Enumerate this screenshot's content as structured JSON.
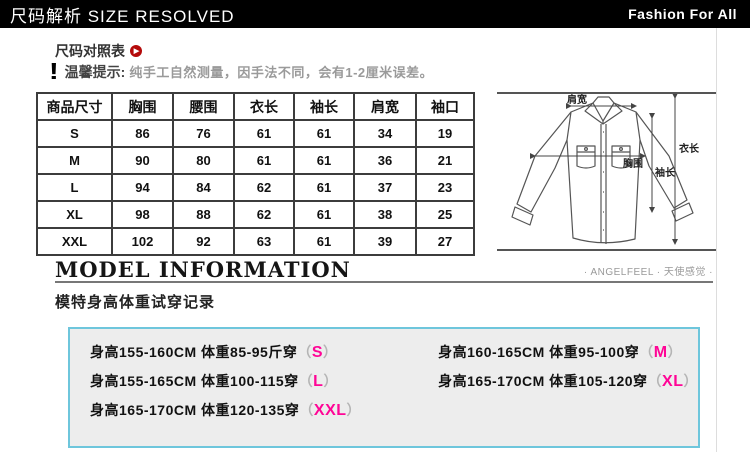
{
  "header": {
    "title": "尺码解析 SIZE RESOLVED",
    "brand": "Fashion For All"
  },
  "section": {
    "chart_title": "尺码对照表",
    "tip_icon": "!",
    "tip_label": "温馨提示:",
    "tip_text": "纯手工自然测量，因手法不同，会有1-2厘米误差。"
  },
  "icons": {
    "play": "▶"
  },
  "size_table": {
    "columns": [
      "商品尺寸",
      "胸围",
      "腰围",
      "衣长",
      "袖长",
      "肩宽",
      "袖口"
    ],
    "rows": [
      [
        "S",
        "86",
        "76",
        "61",
        "61",
        "34",
        "19"
      ],
      [
        "M",
        "90",
        "80",
        "61",
        "61",
        "36",
        "21"
      ],
      [
        "L",
        "94",
        "84",
        "62",
        "61",
        "37",
        "23"
      ],
      [
        "XL",
        "98",
        "88",
        "62",
        "61",
        "38",
        "25"
      ],
      [
        "XXL",
        "102",
        "92",
        "63",
        "61",
        "39",
        "27"
      ]
    ]
  },
  "diagram": {
    "labels": {
      "shoulder": "肩宽",
      "chest": "胸围",
      "length": "衣长",
      "sleeve": "袖长"
    }
  },
  "model_info": {
    "title": "MODEL INFORMATION",
    "brand_note": "· ANGELFEEL · 天使感觉 ·",
    "subtitle": "模特身高体重试穿记录"
  },
  "fitting": {
    "paren_open": "（",
    "paren_close": "）",
    "left": [
      {
        "text": "身高155-160CM 体重85-95斤穿",
        "size": "S"
      },
      {
        "text": "身高155-165CM 体重100-115穿",
        "size": "L"
      },
      {
        "text": "身高165-170CM 体重120-135穿",
        "size": "XXL"
      }
    ],
    "right": [
      {
        "text": "身高160-165CM 体重95-100穿",
        "size": "M"
      },
      {
        "text": "身高165-170CM 体重105-120穿",
        "size": "XL"
      }
    ]
  },
  "colors": {
    "accent_magenta": "#ff0596",
    "box_border": "#6ec6dc",
    "box_bg": "#ededed",
    "bar_bg": "#000000",
    "play_red": "#b40a0a"
  }
}
